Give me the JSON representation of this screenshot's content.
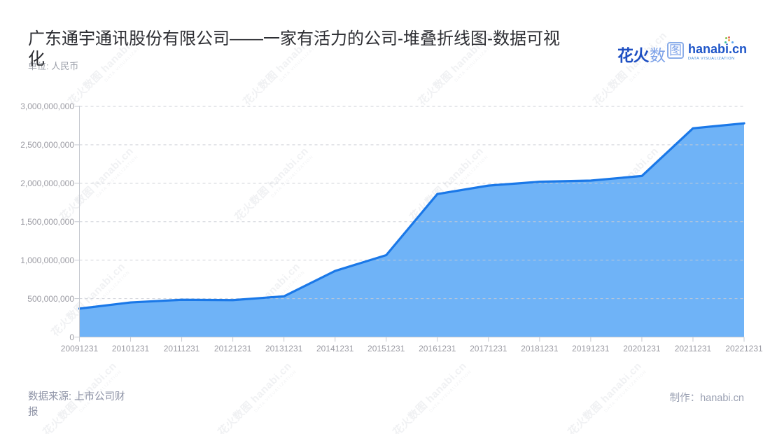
{
  "header": {
    "title": "广东通宇通讯股份有限公司——一家有活力的公司-堆叠折线图-数据可视化",
    "unit": "单位: 人民币"
  },
  "logo": {
    "brand_cn_bold": "花火",
    "brand_cn_light": "数",
    "brand_cn_boxed": "图",
    "brand_en": "hanabi.cn",
    "tagline": "DATA VISUALIZATION"
  },
  "watermark": {
    "line1": "花火数图 hanabi.cn",
    "line2": "DATA VISUALIZATION"
  },
  "footer": {
    "source": "数据来源: 上市公司财报",
    "credit": "制作：hanabi.cn"
  },
  "chart_data": {
    "type": "area",
    "title": "广东通宇通讯股份有限公司——一家有活力的公司-堆叠折线图-数据可视化",
    "unit": "人民币",
    "categories": [
      "20091231",
      "20101231",
      "20111231",
      "20121231",
      "20131231",
      "20141231",
      "20151231",
      "20161231",
      "20171231",
      "20181231",
      "20191231",
      "20201231",
      "20211231",
      "20221231"
    ],
    "values": [
      370000000,
      450000000,
      485000000,
      480000000,
      530000000,
      860000000,
      1065000000,
      1860000000,
      1970000000,
      2020000000,
      2035000000,
      2095000000,
      2715000000,
      2780000000
    ],
    "ylim": [
      0,
      3000000000
    ],
    "y_tick_values": [
      0,
      500000000,
      1000000000,
      1500000000,
      2000000000,
      2500000000,
      3000000000
    ],
    "y_tick_labels": [
      "0",
      "500,000,000",
      "1,000,000,000",
      "1,500,000,000",
      "2,000,000,000",
      "2,500,000,000",
      "3,000,000,000"
    ],
    "grid": "horizontal-dashed",
    "legend": "none",
    "colors": {
      "area_fill": "#6fb3f7",
      "line": "#1a78e8",
      "axis": "#c6c9d0",
      "gridline": "#c9ccd3",
      "tick_text": "#9b9ba3",
      "title_text": "#2d2e33",
      "footer_text": "#8e93a6",
      "logo_blue": "#1e4fc2",
      "logo_light_blue": "#7da2e8"
    }
  }
}
